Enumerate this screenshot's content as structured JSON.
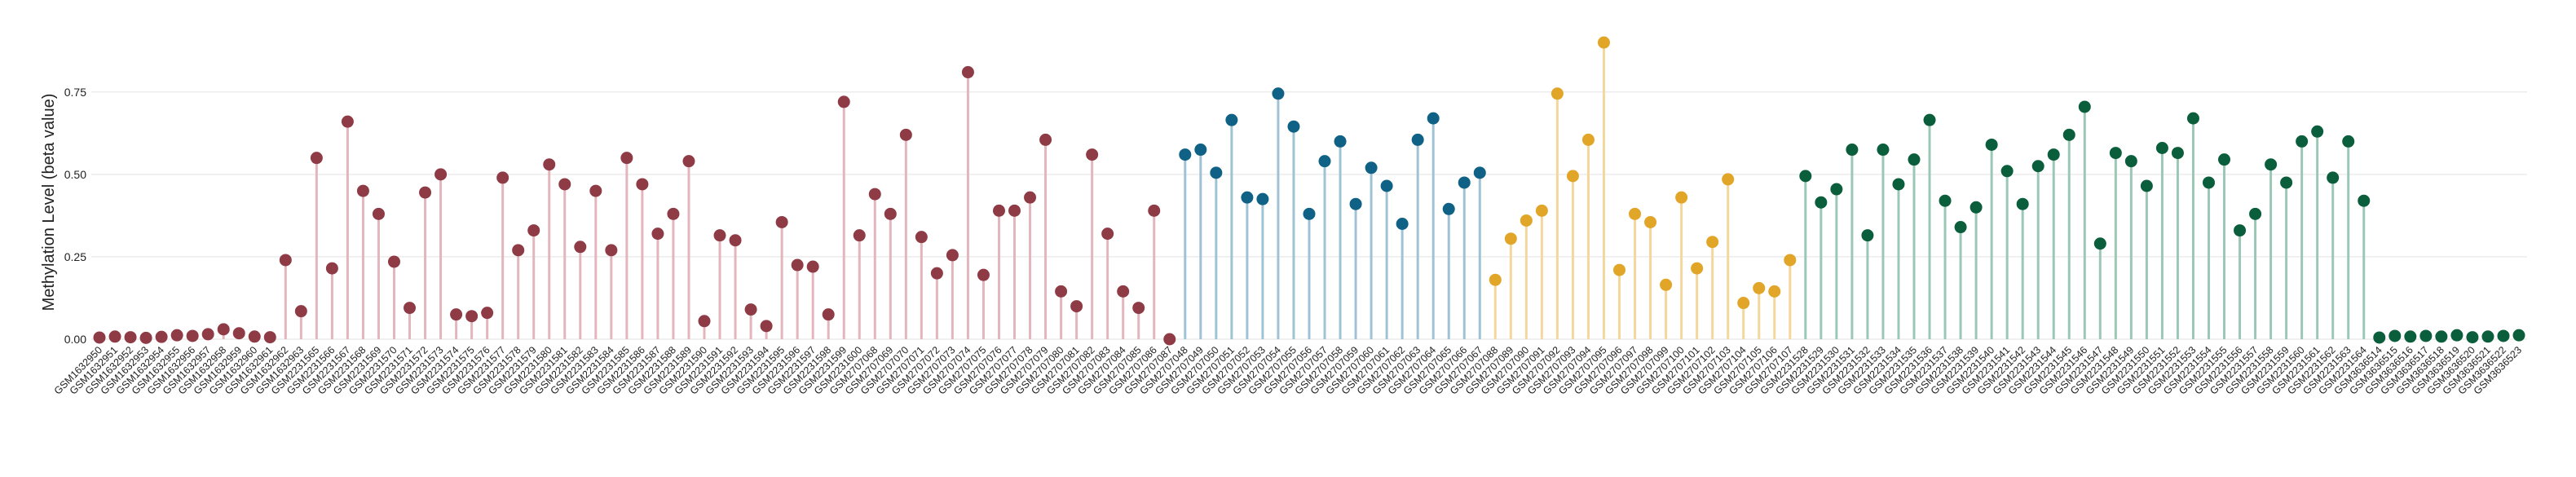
{
  "chart_data": {
    "type": "lollipop",
    "ylabel": "Methylation Level (beta value)",
    "xlabel": "",
    "title": "",
    "ylim": [
      0,
      0.93
    ],
    "yticks": [
      0.0,
      0.25,
      0.5,
      0.75
    ],
    "ytick_labels": [
      "0.00",
      "0.25",
      "0.50",
      "0.75"
    ],
    "grid": "horizontal",
    "group_colors": {
      "dark_red": "#8e3b46",
      "pink": "#e3b5bd",
      "blue_light": "#9fc3d5",
      "blue": "#0f6185",
      "yellow_light": "#f4d79c",
      "yellow": "#e1a528",
      "green_light": "#9bc7b6",
      "green": "#0b5e3c"
    },
    "groups": [
      {
        "stem_color_key": "pink",
        "point_color_key": "dark_red",
        "samples": [
          "GSM1632950",
          "GSM1632951",
          "GSM1632952",
          "GSM1632953",
          "GSM1632954",
          "GSM1632955",
          "GSM1632956",
          "GSM1632957",
          "GSM1632958",
          "GSM1632959",
          "GSM1632960",
          "GSM1632961",
          "GSM1632962",
          "GSM1632963",
          "GSM2231565",
          "GSM2231566",
          "GSM2231567",
          "GSM2231568",
          "GSM2231569",
          "GSM2231570",
          "GSM2231571",
          "GSM2231572",
          "GSM2231573",
          "GSM2231574",
          "GSM2231575",
          "GSM2231576",
          "GSM2231577",
          "GSM2231578",
          "GSM2231579",
          "GSM2231580",
          "GSM2231581",
          "GSM2231582",
          "GSM2231583",
          "GSM2231584",
          "GSM2231585",
          "GSM2231586",
          "GSM2231587",
          "GSM2231588",
          "GSM2231589",
          "GSM2231590",
          "GSM2231591",
          "GSM2231592",
          "GSM2231593",
          "GSM2231594",
          "GSM2231595",
          "GSM2231596",
          "GSM2231597",
          "GSM2231598",
          "GSM2231599",
          "GSM2231600",
          "GSM2707068",
          "GSM2707069",
          "GSM2707070",
          "GSM2707071",
          "GSM2707072",
          "GSM2707073",
          "GSM2707074",
          "GSM2707075",
          "GSM2707076",
          "GSM2707077",
          "GSM2707078",
          "GSM2707079",
          "GSM2707080",
          "GSM2707081",
          "GSM2707082",
          "GSM2707083",
          "GSM2707084",
          "GSM2707085",
          "GSM2707086",
          "GSM2707087"
        ],
        "values": [
          0.005,
          0.008,
          0.006,
          0.004,
          0.007,
          0.012,
          0.01,
          0.015,
          0.03,
          0.018,
          0.008,
          0.006,
          0.24,
          0.085,
          0.55,
          0.215,
          0.66,
          0.45,
          0.38,
          0.235,
          0.095,
          0.445,
          0.5,
          0.075,
          0.07,
          0.08,
          0.49,
          0.27,
          0.33,
          0.53,
          0.47,
          0.28,
          0.45,
          0.27,
          0.55,
          0.47,
          0.32,
          0.38,
          0.54,
          0.055,
          0.315,
          0.3,
          0.09,
          0.04,
          0.355,
          0.225,
          0.22,
          0.075,
          0.72,
          0.315,
          0.44,
          0.38,
          0.62,
          0.31,
          0.2,
          0.255,
          0.81,
          0.195,
          0.39,
          0.39,
          0.43,
          0.605,
          0.145,
          0.1,
          0.56,
          0.32,
          0.145,
          0.095,
          0.39,
          0.0
        ]
      },
      {
        "stem_color_key": "blue_light",
        "point_color_key": "blue",
        "samples": [
          "GSM2707048",
          "GSM2707049",
          "GSM2707050",
          "GSM2707051",
          "GSM2707052",
          "GSM2707053",
          "GSM2707054",
          "GSM2707055",
          "GSM2707056",
          "GSM2707057",
          "GSM2707058",
          "GSM2707059",
          "GSM2707060",
          "GSM2707061",
          "GSM2707062",
          "GSM2707063",
          "GSM2707064",
          "GSM2707065",
          "GSM2707066",
          "GSM2707067"
        ],
        "values": [
          0.56,
          0.575,
          0.505,
          0.665,
          0.43,
          0.425,
          0.745,
          0.645,
          0.38,
          0.54,
          0.6,
          0.41,
          0.52,
          0.465,
          0.35,
          0.605,
          0.67,
          0.395,
          0.475,
          0.505
        ]
      },
      {
        "stem_color_key": "yellow_light",
        "point_color_key": "yellow",
        "samples": [
          "GSM2707088",
          "GSM2707089",
          "GSM2707090",
          "GSM2707091",
          "GSM2707092",
          "GSM2707093",
          "GSM2707094",
          "GSM2707095",
          "GSM2707096",
          "GSM2707097",
          "GSM2707098",
          "GSM2707099",
          "GSM2707100",
          "GSM2707101",
          "GSM2707102",
          "GSM2707103",
          "GSM2707104",
          "GSM2707105",
          "GSM2707106",
          "GSM2707107"
        ],
        "values": [
          0.18,
          0.305,
          0.36,
          0.39,
          0.745,
          0.495,
          0.605,
          0.9,
          0.21,
          0.38,
          0.355,
          0.165,
          0.43,
          0.215,
          0.295,
          0.485,
          0.11,
          0.155,
          0.145,
          0.24
        ]
      },
      {
        "stem_color_key": "green_light",
        "point_color_key": "green",
        "samples": [
          "GSM2231528",
          "GSM2231529",
          "GSM2231530",
          "GSM2231531",
          "GSM2231532",
          "GSM2231533",
          "GSM2231534",
          "GSM2231535",
          "GSM2231536",
          "GSM2231537",
          "GSM2231538",
          "GSM2231539",
          "GSM2231540",
          "GSM2231541",
          "GSM2231542",
          "GSM2231543",
          "GSM2231544",
          "GSM2231545",
          "GSM2231546",
          "GSM2231547",
          "GSM2231548",
          "GSM2231549",
          "GSM2231550",
          "GSM2231551",
          "GSM2231552",
          "GSM2231553",
          "GSM2231554",
          "GSM2231555",
          "GSM2231556",
          "GSM2231557",
          "GSM2231558",
          "GSM2231559",
          "GSM2231560",
          "GSM2231561",
          "GSM2231562",
          "GSM2231563",
          "GSM2231564",
          "GSM3636514",
          "GSM3636515",
          "GSM3636516",
          "GSM3636517",
          "GSM3636518",
          "GSM3636519",
          "GSM3636520",
          "GSM3636521",
          "GSM3636522",
          "GSM3636523"
        ],
        "values": [
          0.495,
          0.415,
          0.455,
          0.575,
          0.315,
          0.575,
          0.47,
          0.545,
          0.665,
          0.42,
          0.34,
          0.4,
          0.59,
          0.51,
          0.41,
          0.525,
          0.56,
          0.62,
          0.705,
          0.29,
          0.565,
          0.54,
          0.465,
          0.58,
          0.565,
          0.67,
          0.475,
          0.545,
          0.33,
          0.38,
          0.53,
          0.475,
          0.6,
          0.63,
          0.49,
          0.6,
          0.42,
          0.005,
          0.01,
          0.008,
          0.01,
          0.008,
          0.012,
          0.006,
          0.008,
          0.01,
          0.012
        ]
      }
    ],
    "trailing_group": {
      "samples": [
        "GSM3636514",
        "GSM3636515",
        "GSM3636516",
        "GSM3636517",
        "GSM3636518",
        "GSM3636519",
        "GSM3636520",
        "GSM3636521",
        "GSM3636522",
        "GSM3636523"
      ]
    }
  }
}
